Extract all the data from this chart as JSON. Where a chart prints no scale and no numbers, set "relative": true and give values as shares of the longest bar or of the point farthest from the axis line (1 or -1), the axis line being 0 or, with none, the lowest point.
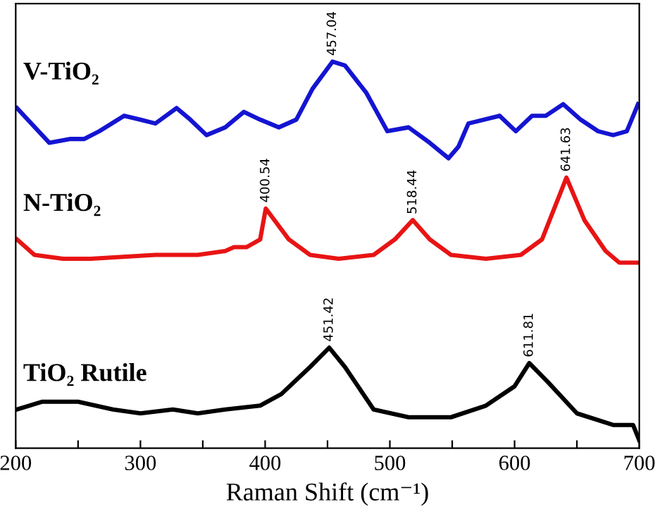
{
  "chart_data": {
    "type": "line",
    "relative": true,
    "xlabel": "Raman Shift (cm⁻¹)",
    "xlim": [
      200,
      700
    ],
    "xticks": [
      200,
      {
        "value": 250,
        "label": null
      },
      300,
      {
        "value": 350,
        "label": null
      },
      400,
      {
        "value": 450,
        "label": null
      },
      500,
      {
        "value": 550,
        "label": null
      },
      600,
      {
        "value": 650,
        "label": null
      },
      700
    ],
    "tick_labels": "x",
    "grid": false,
    "legend": false,
    "series": [
      {
        "name": "V-TiO₂",
        "color": "#1414d2",
        "x": [
          201,
          227,
          244,
          255,
          267,
          287,
          300,
          312,
          329,
          340,
          353,
          368,
          383,
          396,
          411,
          425,
          438,
          454,
          464,
          481,
          498,
          515,
          532,
          547,
          555,
          563,
          588,
          601,
          614,
          625,
          639,
          653,
          667,
          679,
          690,
          699
        ],
        "values": [
          0.88,
          0.79,
          0.8,
          0.8,
          0.82,
          0.86,
          0.85,
          0.84,
          0.88,
          0.85,
          0.81,
          0.83,
          0.87,
          0.85,
          0.83,
          0.85,
          0.93,
          1.0,
          0.99,
          0.92,
          0.82,
          0.83,
          0.79,
          0.75,
          0.78,
          0.84,
          0.86,
          0.82,
          0.86,
          0.86,
          0.89,
          0.85,
          0.82,
          0.81,
          0.82,
          0.89
        ]
      },
      {
        "name": "N-TiO₂",
        "color": "#e81414",
        "x": [
          201,
          215,
          238,
          260,
          312,
          346,
          368,
          375,
          385,
          396,
          400.5,
          419,
          436,
          459,
          487,
          504,
          518.4,
          532,
          549,
          577,
          605,
          622,
          641.6,
          656,
          673,
          684,
          700
        ],
        "values": [
          0.54,
          0.5,
          0.49,
          0.49,
          0.5,
          0.5,
          0.51,
          0.52,
          0.52,
          0.54,
          0.62,
          0.54,
          0.5,
          0.49,
          0.5,
          0.54,
          0.59,
          0.54,
          0.5,
          0.49,
          0.5,
          0.54,
          0.7,
          0.59,
          0.51,
          0.48,
          0.48
        ]
      },
      {
        "name": "TiO₂ Rutile",
        "color": "#000000",
        "x": [
          201,
          221,
          250,
          278,
          300,
          326,
          346,
          368,
          396,
          413,
          436,
          451.4,
          464,
          487,
          515,
          549,
          577,
          600,
          611.8,
          627,
          650,
          679,
          695,
          700
        ],
        "values": [
          0.1,
          0.12,
          0.12,
          0.1,
          0.09,
          0.1,
          0.09,
          0.1,
          0.11,
          0.14,
          0.21,
          0.26,
          0.21,
          0.1,
          0.08,
          0.08,
          0.11,
          0.16,
          0.22,
          0.17,
          0.09,
          0.06,
          0.06,
          0.02
        ]
      }
    ],
    "annotations": [
      {
        "text": "457.04",
        "x": 454,
        "y": 1.0
      },
      {
        "text": "400.54",
        "x": 400.5,
        "y": 0.62
      },
      {
        "text": "518.44",
        "x": 518.4,
        "y": 0.59
      },
      {
        "text": "641.63",
        "x": 641.6,
        "y": 0.7
      },
      {
        "text": "451.42",
        "x": 451.4,
        "y": 0.26
      },
      {
        "text": "611.81",
        "x": 611.8,
        "y": 0.22
      }
    ]
  }
}
